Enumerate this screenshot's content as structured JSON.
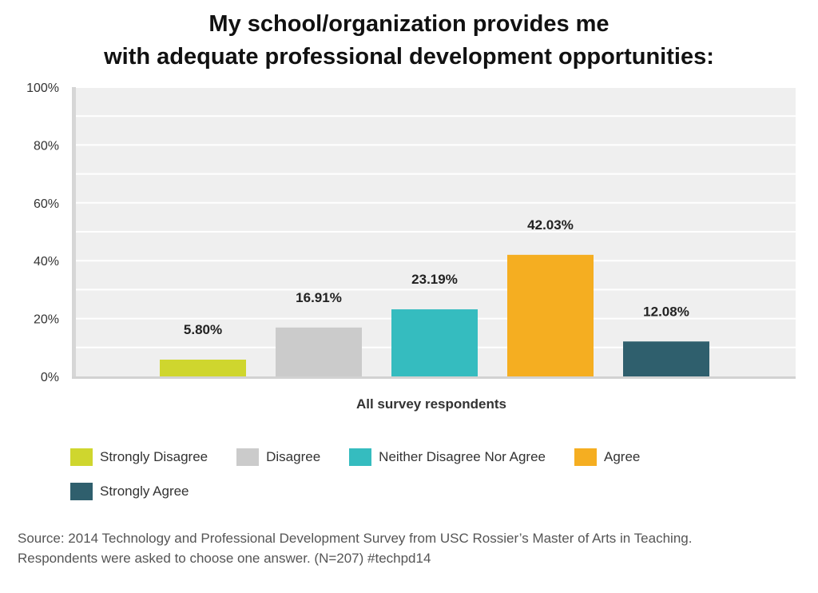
{
  "chart_data": {
    "type": "bar",
    "title": [
      "My school/organization provides me",
      "with adequate professional development opportunities:"
    ],
    "xlabel": "All survey respondents",
    "ylabel": "",
    "ylim": [
      0,
      100
    ],
    "yticks": [
      "0%",
      "20%",
      "40%",
      "60%",
      "80%",
      "100%"
    ],
    "grid": true,
    "legend_position": "bottom",
    "series": [
      {
        "name": "Strongly Disagree",
        "value": 5.8,
        "label": "5.80%",
        "color": "#cfd62e"
      },
      {
        "name": "Disagree",
        "value": 16.91,
        "label": "16.91%",
        "color": "#cbcbcb"
      },
      {
        "name": "Neither Disagree Nor Agree",
        "value": 23.19,
        "label": "23.19%",
        "color": "#35bcbf"
      },
      {
        "name": "Agree",
        "value": 42.03,
        "label": "42.03%",
        "color": "#f5ae21"
      },
      {
        "name": "Strongly Agree",
        "value": 12.08,
        "label": "12.08%",
        "color": "#2f5f6d"
      }
    ]
  },
  "source": {
    "line1": "Source: 2014 Technology and Professional Development Survey from USC Rossier’s Master of Arts in Teaching.",
    "line2": "Respondents were asked to choose one answer. (N=207) #techpd14"
  }
}
